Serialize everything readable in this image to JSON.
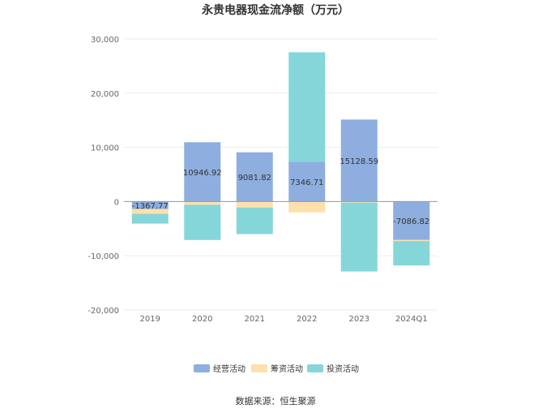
{
  "chart_data": {
    "type": "bar",
    "stacked": true,
    "title": "永贵电器现金流净额（万元）",
    "categories": [
      "2019",
      "2020",
      "2021",
      "2022",
      "2023",
      "2024Q1"
    ],
    "series": [
      {
        "name": "经营活动",
        "color": "#8eaedf",
        "values": [
          -1367.77,
          10946.92,
          9081.82,
          7346.71,
          15128.59,
          -7086.82
        ]
      },
      {
        "name": "筹资活动",
        "color": "#fde0ab",
        "values": [
          -900,
          -600,
          -1100,
          -2000,
          -200,
          -200
        ]
      },
      {
        "name": "投资活动",
        "color": "#85d6d8",
        "values": [
          -1800,
          -6500,
          -4900,
          20200,
          -12700,
          -4500
        ]
      }
    ],
    "data_labels": [
      "-1367.77",
      "10946.92",
      "9081.82",
      "7346.71",
      "15128.59",
      "-7086.82"
    ],
    "y_ticks": [
      "30,000",
      "20,000",
      "10,000",
      "0",
      "-10,000",
      "-20,000"
    ],
    "ylim": [
      -20000,
      30000
    ],
    "grid": true,
    "legend_position": "bottom"
  },
  "source_text": "数据来源：恒生聚源"
}
